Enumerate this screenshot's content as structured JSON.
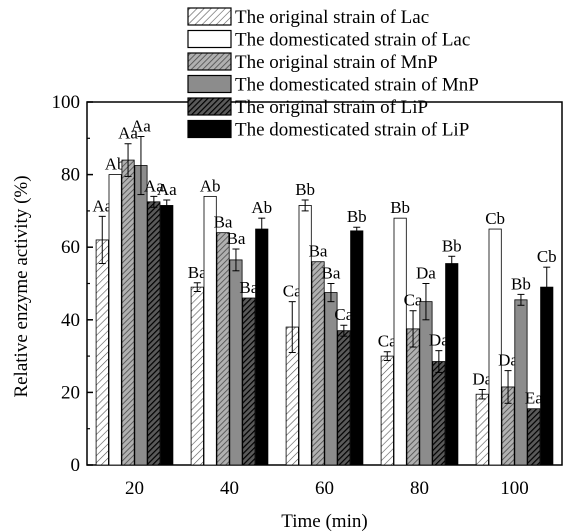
{
  "chart_data": {
    "type": "bar",
    "xlabel": "Time (min)",
    "ylabel": "Relative enzyme activity (%)",
    "ylim": [
      0,
      100
    ],
    "yticks": [
      0,
      20,
      40,
      60,
      80,
      100
    ],
    "categories": [
      "20",
      "40",
      "60",
      "80",
      "100"
    ],
    "legend_position": "top-right",
    "series": [
      {
        "name": "The original strain of Lac",
        "pattern": "diag-light",
        "color": "#ffffff",
        "values": [
          62,
          49,
          38,
          30,
          19.5
        ],
        "errors": [
          6.5,
          1.2,
          7,
          1.2,
          1.3
        ],
        "labels": [
          "Aa",
          "Ba",
          "Ca",
          "Ca",
          "Da"
        ]
      },
      {
        "name": "The domesticated strain of Lac",
        "pattern": "white",
        "color": "#ffffff",
        "values": [
          80,
          74,
          71.5,
          68,
          65
        ],
        "errors": [
          0,
          0,
          1.5,
          0,
          0
        ],
        "labels": [
          "Ab",
          "Ab",
          "Bb",
          "Bb",
          "Cb"
        ]
      },
      {
        "name": "The original strain of MnP",
        "pattern": "diag-gray",
        "color": "#9a9a9a",
        "values": [
          84,
          64,
          56,
          37.5,
          21.5
        ],
        "errors": [
          4.5,
          0,
          0,
          5,
          4.5
        ],
        "labels": [
          "Aa",
          "Ba",
          "Ba",
          "Ca",
          "Da"
        ]
      },
      {
        "name": "The domesticated strain of MnP",
        "pattern": "gray",
        "color": "#888888",
        "values": [
          82.5,
          56.5,
          47.5,
          45,
          45.5
        ],
        "errors": [
          8,
          3,
          2.5,
          5,
          1.5
        ],
        "labels": [
          "Aa",
          "Ba",
          "Ba",
          "Da",
          "Bb"
        ]
      },
      {
        "name": "The original strain of LiP",
        "pattern": "diag-dark",
        "color": "#1a1a1a",
        "values": [
          72.5,
          46,
          37,
          28.5,
          15.5
        ],
        "errors": [
          1.5,
          0,
          1.5,
          3,
          0
        ],
        "labels": [
          "Aa",
          "Ba",
          "Ca",
          "Da",
          "Ea"
        ]
      },
      {
        "name": "The domesticated strain of LiP",
        "pattern": "black",
        "color": "#000000",
        "values": [
          71.5,
          65,
          64.5,
          55.5,
          49
        ],
        "errors": [
          1.5,
          3,
          1,
          2,
          5.5
        ],
        "labels": [
          "Aa",
          "Ab",
          "Bb",
          "Bb",
          "Cb"
        ]
      }
    ]
  }
}
